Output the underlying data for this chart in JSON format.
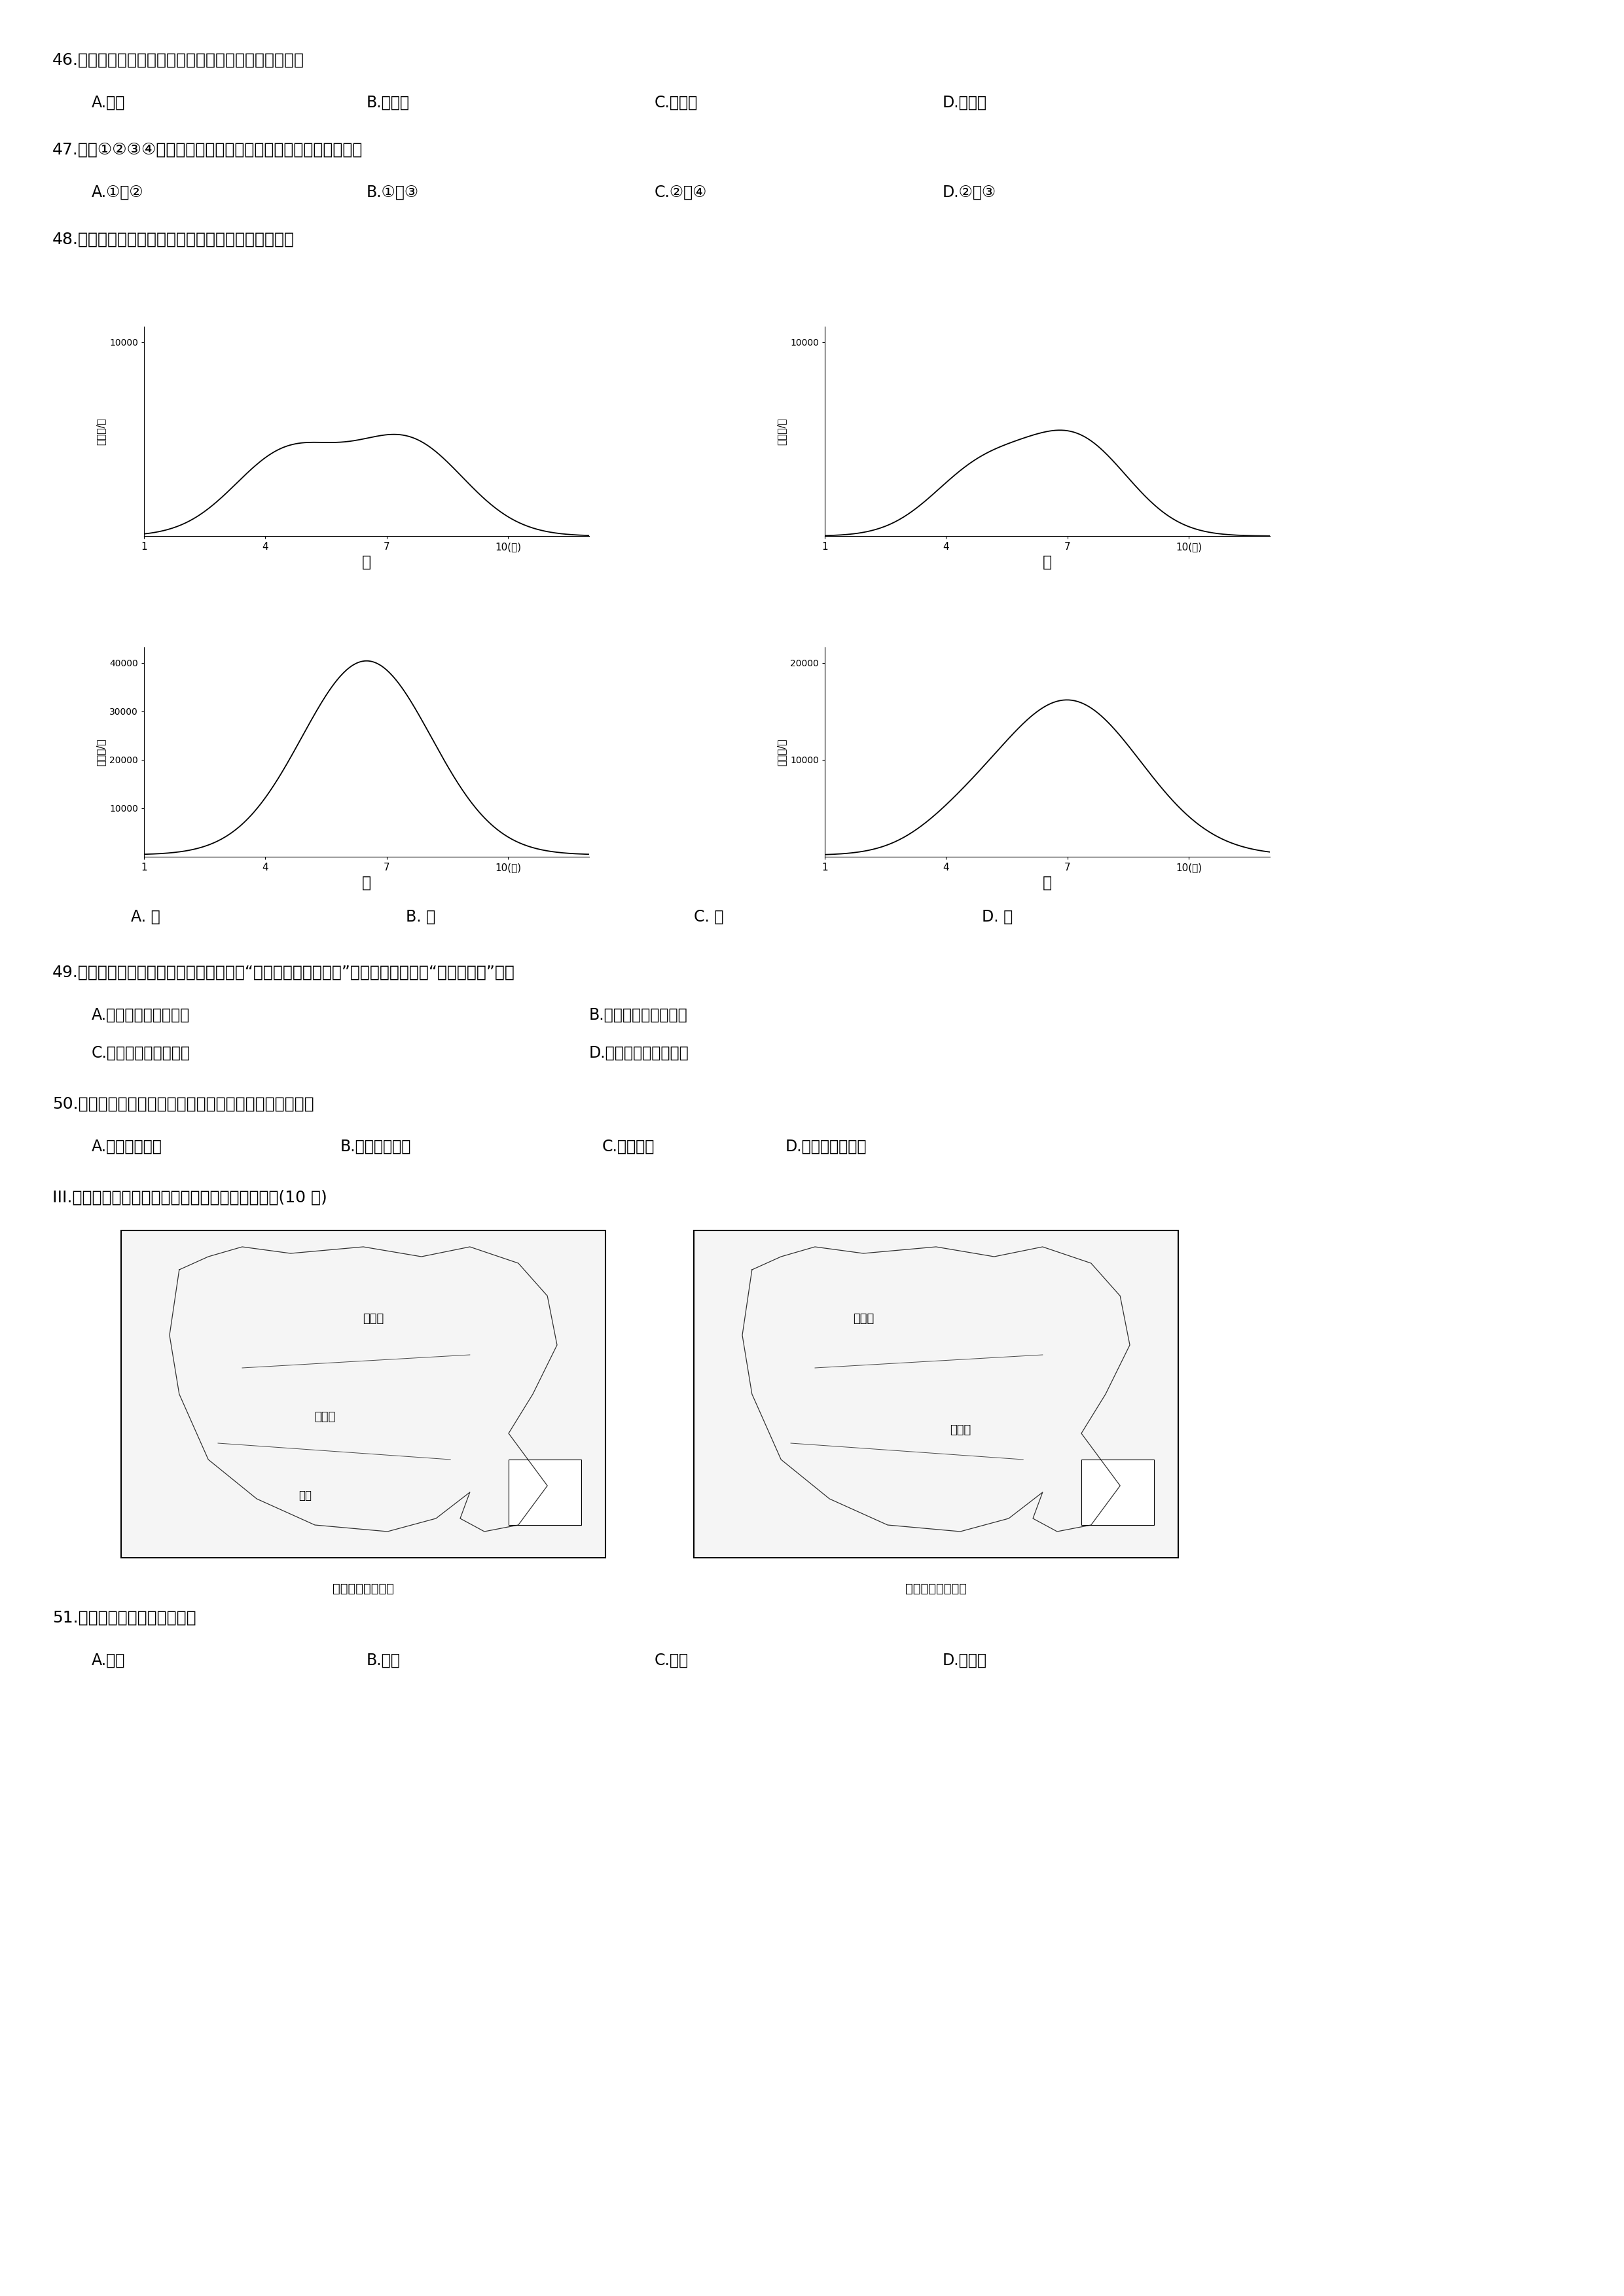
{
  "bg_color": "#ffffff",
  "text_color": "#000000",
  "q46_text": "46.图中山脉是华北平原与黄土高原的分界线，其名称是",
  "q46_opts": [
    "A.秦岭",
    "B.武夷山",
    "C.长白山",
    "D.太行山"
  ],
  "q47_text": "47.图中①②③④表示黄河上、中、下游的分界线，其中正确的是",
  "q47_opts": [
    "A.①、②",
    "B.①、③",
    "C.②、④",
    "D.②、③"
  ],
  "q48_text": "48.下列四幅我国河流径流量图，能正确表示黄河的是",
  "q48_opts": [
    "A. 甲",
    "B. 乙",
    "C. 丙",
    "D. 丁"
  ],
  "q49_text": "49.新中国成立之初，毛泽东同志就发出了“要把黄河的事情办好”的伟大号召，这里“黄河的事情”是指",
  "q49_opts_r1": [
    "A.水土流失和洪涝灾害",
    "B.水土流失与环境污染"
  ],
  "q49_opts_r2": [
    "C.洪涝灾害和环境污染",
    "D.水能开发与水土流失"
  ],
  "q50_text": "50.为了减少黄土高原的水土流失，下列措施中不合适的是",
  "q50_opts": [
    "A.缓坡修建梯田",
    "B.坡脚建挡土嵂",
    "C.植树种草",
    "D.大面积开垃耕地"
  ],
  "q_roman_text": "III.读中国温度带与干湿区分布图，回答下列问题。(10 分)",
  "q51_text": "51.亚热带和湿润区的北界线是",
  "q51_opts": [
    "A.长江",
    "B.淮河",
    "C.黄河",
    "D.黑龙江"
  ],
  "map1_labels": [
    "中温带",
    "亚热带",
    "热带"
  ],
  "map1_caption": "中国温度带分布图",
  "map2_labels": [
    "干旱区",
    "湿润区"
  ],
  "map2_caption": "中国干湿区分布图"
}
